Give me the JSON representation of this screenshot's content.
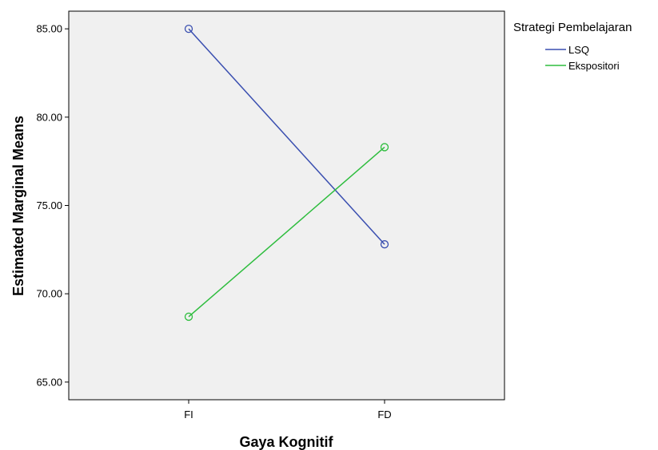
{
  "chart_data": {
    "type": "line",
    "title": "",
    "xlabel": "Gaya Kognitif",
    "ylabel": "Estimated Marginal Means",
    "categories": [
      "FI",
      "FD"
    ],
    "ylim": [
      64.0,
      86.0
    ],
    "yticks": [
      "65.00",
      "70.00",
      "75.00",
      "80.00",
      "85.00"
    ],
    "ytick_values": [
      65,
      70,
      75,
      80,
      85
    ],
    "grid": false,
    "legend_title": "Strategi Pembelajaran",
    "legend_position": "top-right",
    "series": [
      {
        "name": "LSQ",
        "values": [
          85.0,
          72.8
        ],
        "color": "#3a4fb0"
      },
      {
        "name": "Ekspositori",
        "values": [
          68.7,
          78.3
        ],
        "color": "#2ebd3e"
      }
    ],
    "plot_background": "#f0f0f0"
  }
}
